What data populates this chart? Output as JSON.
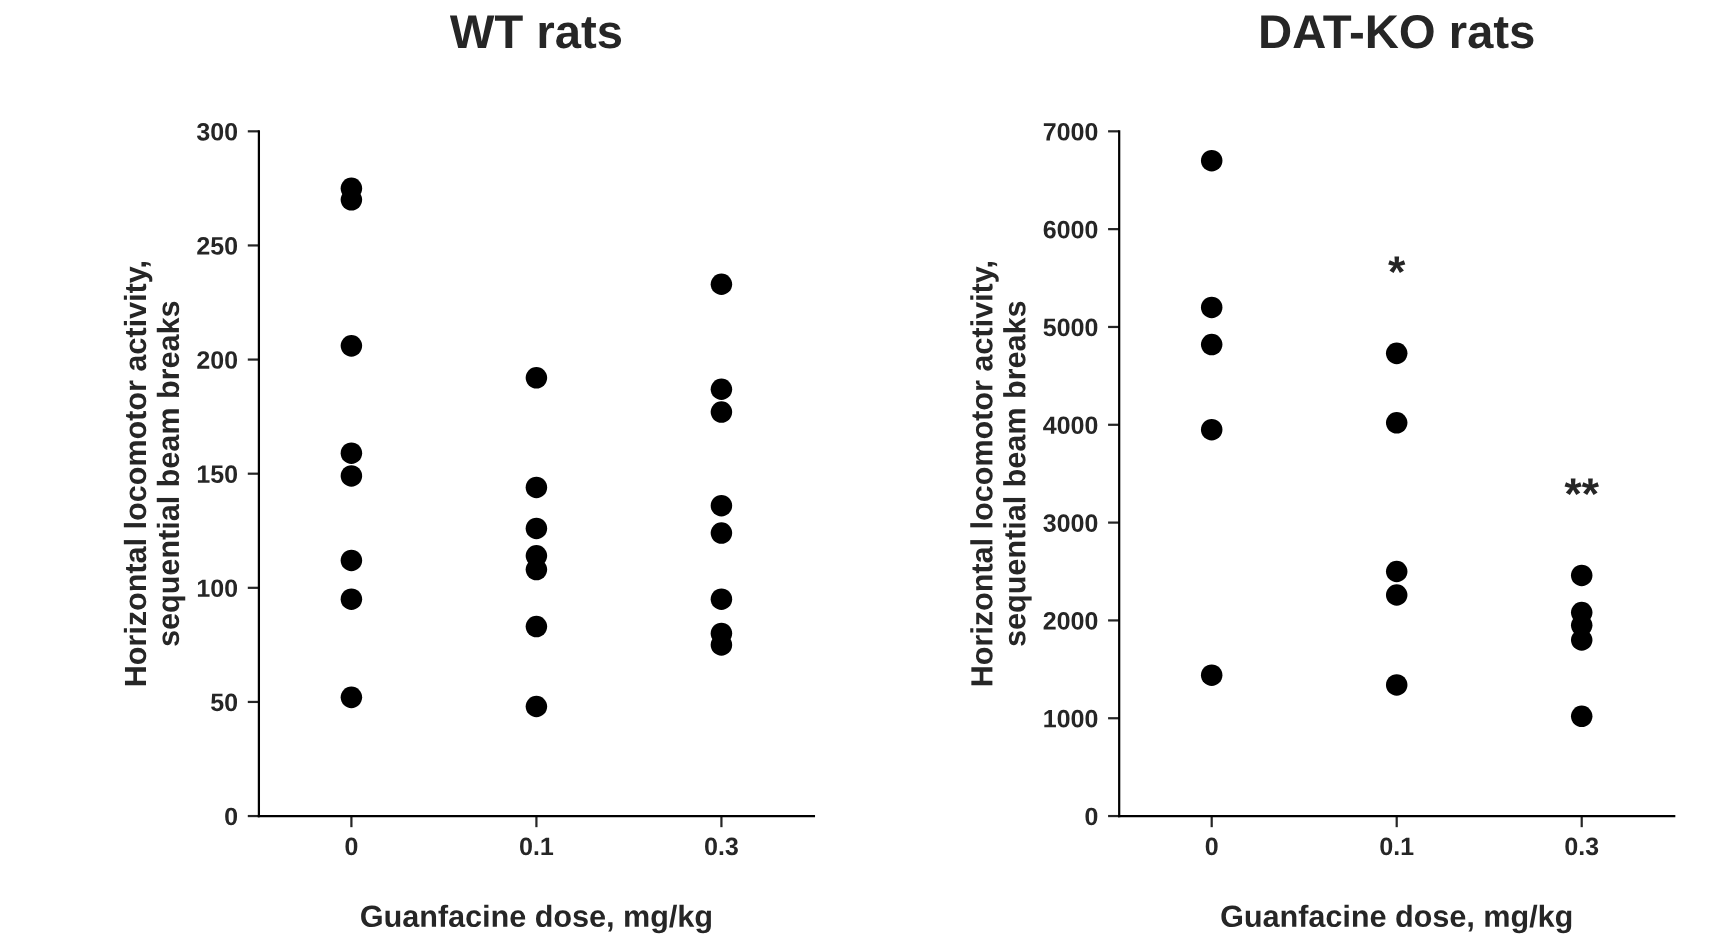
{
  "chart_data": [
    {
      "type": "scatter",
      "title": "WT rats",
      "xlabel": "Guanfacine dose, mg/kg",
      "ylabel": "Horizontal locomotor activity,\nsequential beam breaks",
      "categories": [
        "0",
        "0.1",
        "0.3"
      ],
      "series": [
        {
          "color": "#000000",
          "x": [
            "0",
            "0",
            "0",
            "0",
            "0",
            "0",
            "0",
            "0",
            "0.1",
            "0.1",
            "0.1",
            "0.1",
            "0.1",
            "0.1",
            "0.1",
            "0.3",
            "0.3",
            "0.3",
            "0.3",
            "0.3",
            "0.3",
            "0.3",
            "0.3"
          ],
          "values": [
            275,
            270,
            206,
            159,
            149,
            112,
            95,
            52,
            192,
            144,
            126,
            114,
            108,
            83,
            48,
            233,
            187,
            177,
            136,
            124,
            95,
            80,
            75
          ]
        }
      ],
      "ylim": [
        0,
        300
      ],
      "yticks": [
        0,
        50,
        100,
        150,
        200,
        250,
        300
      ],
      "marker": "circle",
      "grid": false,
      "legend": false
    },
    {
      "type": "scatter",
      "title": "DAT-KO rats",
      "xlabel": "Guanfacine dose, mg/kg",
      "ylabel": "Horizontal locomotor activity,\nsequential beam breaks",
      "categories": [
        "0",
        "0.1",
        "0.3"
      ],
      "series": [
        {
          "color": "#000000",
          "x": [
            "0",
            "0",
            "0",
            "0",
            "0",
            "0.1",
            "0.1",
            "0.1",
            "0.1",
            "0.1",
            "0.3",
            "0.3",
            "0.3",
            "0.3",
            "0.3"
          ],
          "values": [
            6700,
            5200,
            4820,
            3950,
            1440,
            4730,
            4020,
            2500,
            2260,
            1340,
            2460,
            2080,
            1950,
            1800,
            1020
          ]
        }
      ],
      "ylim": [
        0,
        7000
      ],
      "yticks": [
        0,
        1000,
        2000,
        3000,
        4000,
        5000,
        6000,
        7000
      ],
      "marker": "circle",
      "grid": false,
      "legend": false,
      "annotations": [
        "*",
        "**"
      ]
    }
  ]
}
